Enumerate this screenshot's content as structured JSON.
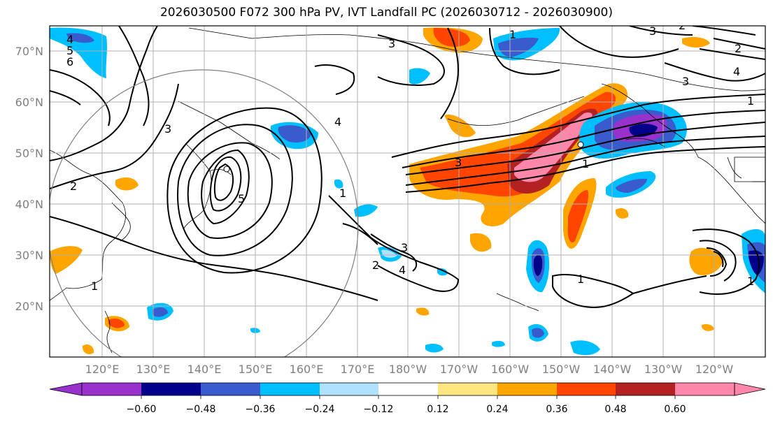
{
  "title": "2026030500 F072 300 hPa PV, IVT Landfall PC (2026030712 - 2026030900)",
  "map": {
    "lat_labels": [
      "70°N",
      "60°N",
      "50°N",
      "40°N",
      "30°N",
      "20°N"
    ],
    "lon_labels": [
      "120°E",
      "130°E",
      "140°E",
      "150°E",
      "160°E",
      "170°E",
      "180°W",
      "170°W",
      "160°W",
      "150°W",
      "140°W",
      "130°W",
      "120°W"
    ],
    "contour_labels": [
      "1",
      "2",
      "3",
      "4",
      "5",
      "6",
      "3",
      "3",
      "3",
      "1",
      "4",
      "1",
      "1",
      "2",
      "4",
      "5",
      "3",
      "1",
      "2",
      "1",
      "2",
      "4",
      "3",
      "1"
    ]
  },
  "colorbar": {
    "tick_labels": [
      "−0.60",
      "−0.48",
      "−0.36",
      "−0.24",
      "−0.12",
      "0.12",
      "0.24",
      "0.36",
      "0.48",
      "0.60"
    ],
    "colors": [
      "#9932cc",
      "#00008b",
      "#3a5bcc",
      "#00bfff",
      "#b0e2ff",
      "#ffffff",
      "#ffe680",
      "#ffa500",
      "#ff4500",
      "#b22222",
      "#ff88aa",
      "#ff88aa"
    ]
  }
}
